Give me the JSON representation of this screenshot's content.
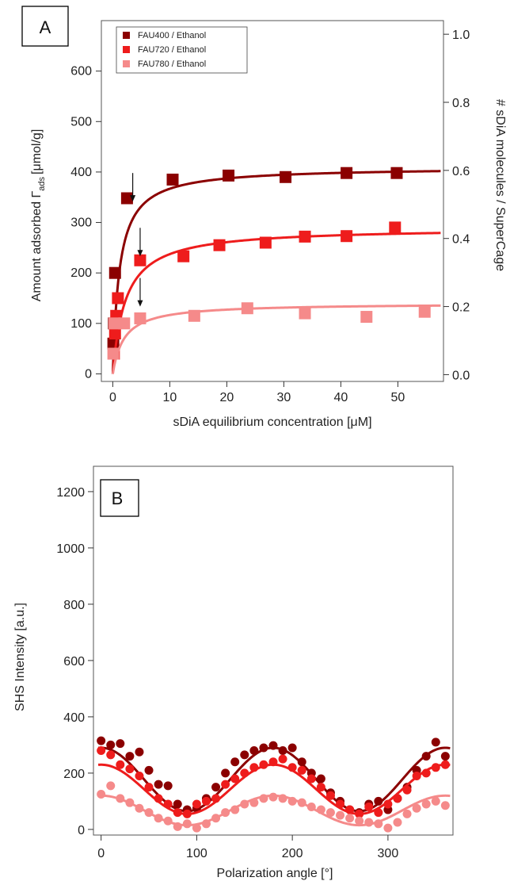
{
  "colors": {
    "FAU400": "#8b0000",
    "FAU720": "#ee1c1c",
    "FAU780": "#f58a8a",
    "frame": "#555555"
  },
  "chart_data": [
    {
      "panel": "A",
      "type": "scatter",
      "xlabel": "sDiA equilibrium concentration [",
      "xlabel_unit": "μM",
      "xlabel_close": "]",
      "ylabel": "Amount adsorbed Γ",
      "ylabel_sub": "ads",
      "ylabel_unit": "[μmol/g]",
      "y2label": "# sDiA molecules / SuperCage",
      "xlim": [
        -2,
        58
      ],
      "ylim": [
        -15,
        700
      ],
      "y2lim": [
        -0.02,
        1.04
      ],
      "xticks": [
        "0",
        "10",
        "20",
        "30",
        "40",
        "50"
      ],
      "yticks": [
        "0",
        "100",
        "200",
        "300",
        "400",
        "500",
        "600"
      ],
      "y2ticks": [
        "0.0",
        "0.2",
        "0.4",
        "0.6",
        "0.8",
        "1.0"
      ],
      "legend_position": "top-left",
      "marker": "square",
      "fit_type": "langmuir",
      "series": [
        {
          "name": "FAU400 / Ethanol",
          "color": "#8b0000",
          "x": [
            0.1,
            0.2,
            0.4,
            2.5,
            10.5,
            20.3,
            30.3,
            41.0,
            49.8
          ],
          "y": [
            60,
            100,
            200,
            348,
            385,
            393,
            390,
            398,
            398
          ],
          "fit": {
            "max": 410,
            "k": 0.85
          },
          "arrow_x": 3.5
        },
        {
          "name": "FAU720 / Ethanol",
          "color": "#ee1c1c",
          "x": [
            0.2,
            0.4,
            0.6,
            0.9,
            4.8,
            12.4,
            18.7,
            26.8,
            33.7,
            41.0,
            49.5
          ],
          "y": [
            40,
            80,
            115,
            150,
            225,
            233,
            255,
            260,
            272,
            273,
            290
          ],
          "fit": {
            "max": 290,
            "k": 0.45
          },
          "arrow_x": 4.8
        },
        {
          "name": "FAU780 / Ethanol",
          "color": "#f58a8a",
          "x": [
            0.1,
            0.3,
            2.0,
            4.8,
            14.3,
            23.6,
            33.7,
            44.5,
            54.7
          ],
          "y": [
            40,
            100,
            100,
            110,
            115,
            130,
            120,
            113,
            123
          ],
          "fit": {
            "max": 140,
            "k": 0.5
          },
          "arrow_x": 4.8
        }
      ]
    },
    {
      "panel": "B",
      "type": "scatter",
      "xlabel": "Polarization angle [°]",
      "ylabel": "SHS Intensity [a.u.]",
      "xlim": [
        -8,
        368
      ],
      "ylim": [
        -20,
        1290
      ],
      "xticks": [
        "0",
        "100",
        "200",
        "300"
      ],
      "yticks": [
        "0",
        "200",
        "400",
        "600",
        "800",
        "1000",
        "1200"
      ],
      "marker": "circle",
      "fit_type": "cos2",
      "series": [
        {
          "name": "FAU400 / Ethanol",
          "color": "#8b0000",
          "x": [
            0,
            10,
            20,
            30,
            40,
            50,
            60,
            70,
            80,
            90,
            100,
            110,
            120,
            130,
            140,
            150,
            160,
            170,
            180,
            190,
            200,
            210,
            220,
            230,
            240,
            250,
            260,
            270,
            280,
            290,
            300,
            310,
            320,
            330,
            340,
            350,
            360
          ],
          "y": [
            315,
            300,
            305,
            260,
            275,
            210,
            160,
            155,
            90,
            70,
            75,
            110,
            150,
            200,
            240,
            265,
            280,
            290,
            298,
            280,
            290,
            240,
            200,
            180,
            130,
            100,
            70,
            60,
            90,
            100,
            70,
            110,
            150,
            210,
            260,
            310,
            260
          ],
          "fit": {
            "base": 65,
            "amp": 225
          }
        },
        {
          "name": "FAU720 / Ethanol",
          "color": "#ee1c1c",
          "x": [
            0,
            10,
            20,
            30,
            40,
            50,
            60,
            70,
            80,
            90,
            100,
            110,
            120,
            130,
            140,
            150,
            160,
            170,
            180,
            190,
            200,
            210,
            220,
            230,
            240,
            250,
            260,
            270,
            280,
            290,
            300,
            310,
            320,
            330,
            340,
            350,
            360
          ],
          "y": [
            280,
            265,
            230,
            215,
            190,
            150,
            110,
            90,
            60,
            55,
            90,
            100,
            110,
            160,
            180,
            200,
            220,
            230,
            240,
            250,
            220,
            210,
            180,
            150,
            120,
            90,
            70,
            55,
            80,
            60,
            90,
            110,
            140,
            190,
            200,
            220,
            230
          ],
          "fit": {
            "base": 55,
            "amp": 175
          }
        },
        {
          "name": "FAU780 / Ethanol",
          "color": "#f58a8a",
          "x": [
            0,
            10,
            20,
            30,
            40,
            50,
            60,
            70,
            80,
            90,
            100,
            110,
            120,
            130,
            140,
            150,
            160,
            170,
            180,
            190,
            200,
            210,
            220,
            230,
            240,
            250,
            260,
            270,
            280,
            290,
            300,
            310,
            320,
            330,
            340,
            350,
            360
          ],
          "y": [
            125,
            155,
            110,
            95,
            75,
            60,
            40,
            30,
            10,
            20,
            5,
            20,
            40,
            60,
            70,
            90,
            95,
            110,
            115,
            110,
            100,
            95,
            80,
            70,
            60,
            50,
            40,
            30,
            25,
            20,
            5,
            25,
            55,
            75,
            90,
            100,
            85
          ],
          "fit": {
            "base": 15,
            "amp": 105
          }
        }
      ]
    }
  ]
}
